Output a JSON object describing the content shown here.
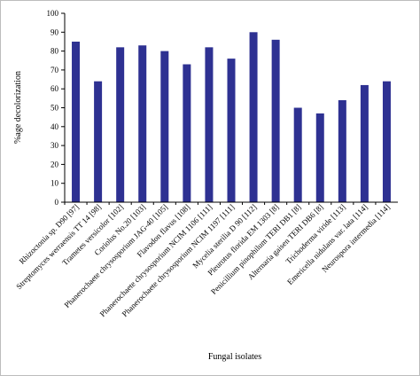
{
  "chart_data": {
    "type": "bar",
    "title": "",
    "xlabel": "Fungal isolates",
    "ylabel": "%age decolorization",
    "ylim": [
      0,
      100
    ],
    "yticks": [
      0,
      10,
      20,
      30,
      40,
      50,
      60,
      70,
      80,
      90,
      100
    ],
    "grid": false,
    "legend": "none",
    "bar_color": "#2e3192",
    "categories": [
      "Rhizoctonia sp. D90 [97]",
      "Streptomyces werraensis TT 14 [98]",
      "Trametes versicolor [102]",
      "Coriolus No.20 [103]",
      "Phanerochaete chrysosporium JAG-40 [105]",
      "Flavodon flavus [108]",
      "Phanerochaete chrysosporium NCIM 1106 [111]",
      "Phanerochaete chrysosporium NCIM 1197 [111]",
      "Mycelia sterilia D 90 [112]",
      "Pleurotus florida EM 1303 [8]",
      "Penicillium pinophilum TERI DB1 [8]",
      "Alternaria gaisen TERI DB6 [8]",
      "Trichoderma viride [113]",
      "Emericella nidulans var. lata [114]",
      "Neurospora intermedia [114]"
    ],
    "values": [
      85,
      64,
      82,
      83,
      80,
      73,
      82,
      76,
      90,
      86,
      50,
      47,
      54,
      62,
      64
    ]
  }
}
